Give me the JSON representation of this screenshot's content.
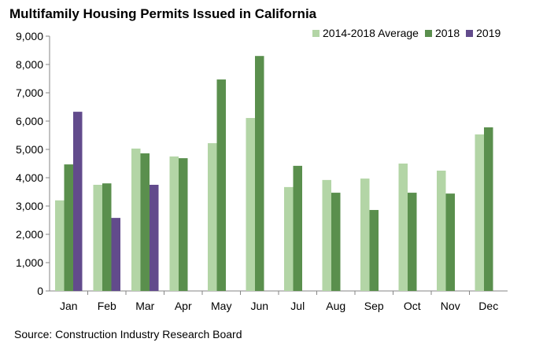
{
  "chart_data": {
    "type": "bar",
    "title": "Multifamily Housing Permits Issued in California",
    "source": "Source: Construction Industry Research Board",
    "categories": [
      "Jan",
      "Feb",
      "Mar",
      "Apr",
      "May",
      "Jun",
      "Jul",
      "Aug",
      "Sep",
      "Oct",
      "Nov",
      "Dec"
    ],
    "ylim": [
      0,
      9000
    ],
    "yticks": [
      0,
      1000,
      2000,
      3000,
      4000,
      5000,
      6000,
      7000,
      8000,
      9000
    ],
    "ytick_labels": [
      "0",
      "1,000",
      "2,000",
      "3,000",
      "4,000",
      "5,000",
      "6,000",
      "7,000",
      "8,000",
      "9,000"
    ],
    "grid": false,
    "legend_position": "top-right",
    "series": [
      {
        "name": "2014-2018 Average",
        "color": "#b3d5a6",
        "values": [
          3200,
          3750,
          5030,
          4750,
          5220,
          6110,
          3670,
          3920,
          3970,
          4500,
          4250,
          5530
        ]
      },
      {
        "name": "2018",
        "color": "#5a8f4d",
        "values": [
          4470,
          3800,
          4860,
          4690,
          7470,
          8300,
          4420,
          3470,
          2860,
          3470,
          3440,
          5780
        ]
      },
      {
        "name": "2019",
        "color": "#624b8c",
        "values": [
          6330,
          2580,
          3750,
          null,
          null,
          null,
          null,
          null,
          null,
          null,
          null,
          null
        ]
      }
    ]
  }
}
